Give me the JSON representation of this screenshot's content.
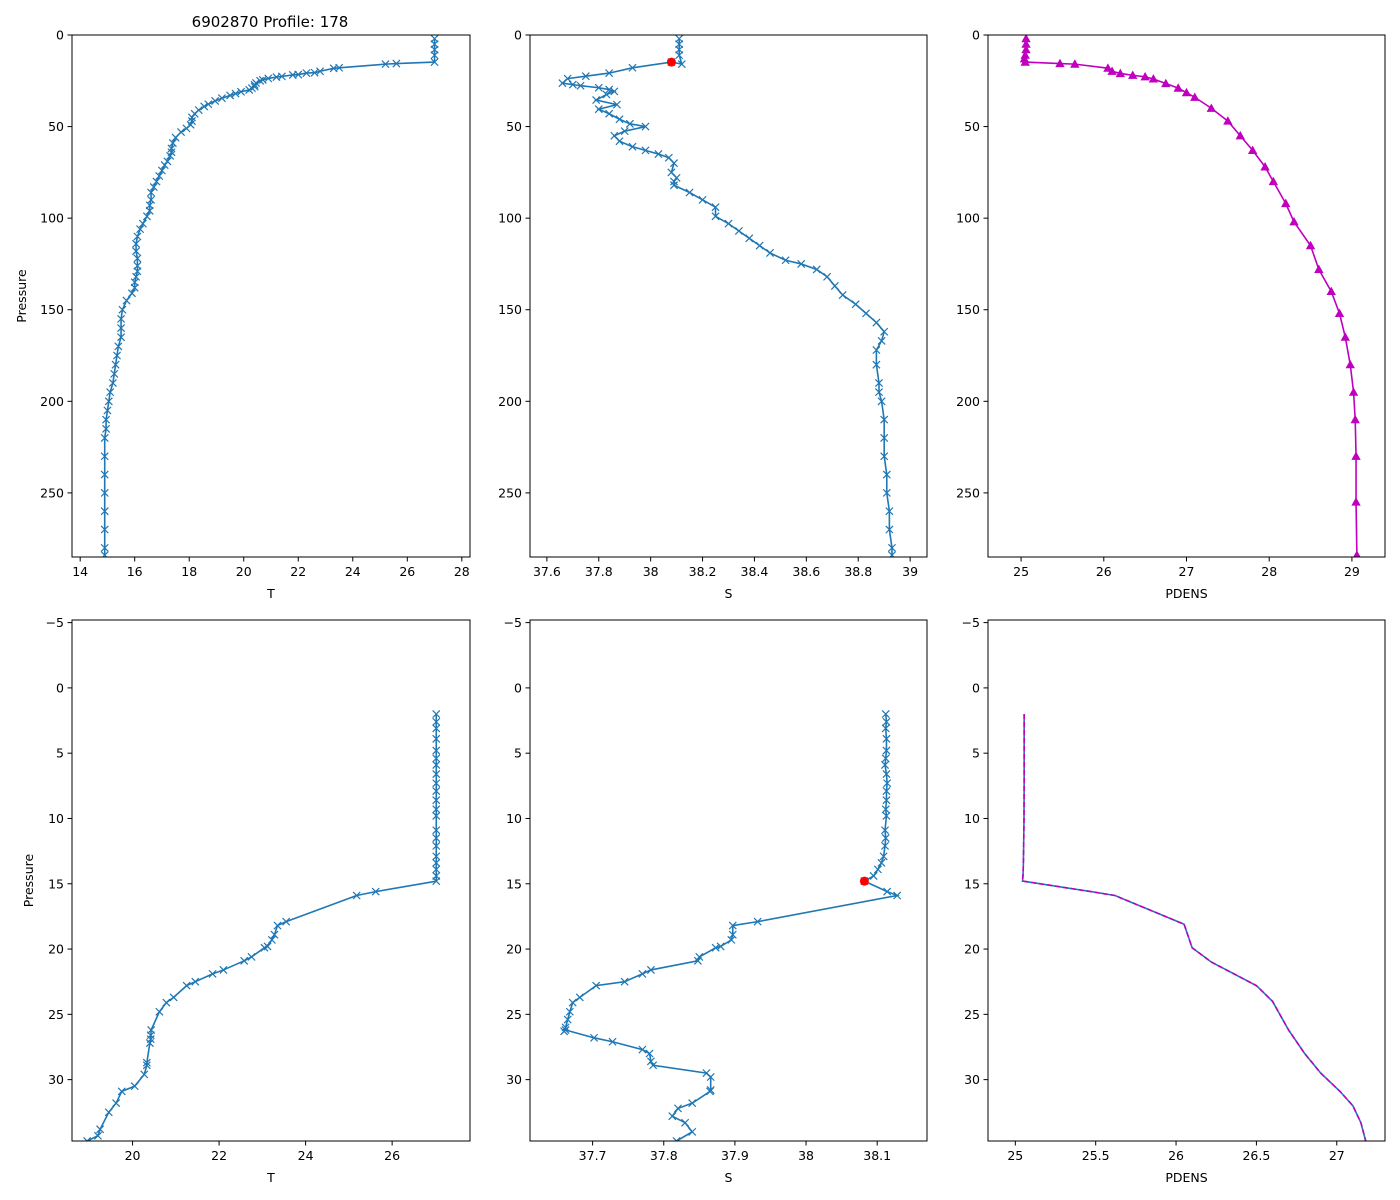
{
  "figure_title": "6902870 Profile: 178",
  "colors": {
    "line": "#1f77b4",
    "density": "#bf00bf",
    "flag": "#ff0000",
    "axis": "#000000"
  },
  "chart_data": [
    {
      "id": "T-full",
      "type": "line",
      "xlabel": "T",
      "ylabel": "Pressure",
      "xlim": [
        13.7,
        28.3
      ],
      "ylim": [
        285,
        0
      ],
      "invert_y": true,
      "xticks": [
        14,
        16,
        18,
        20,
        22,
        24,
        26,
        28
      ],
      "yticks": [
        0,
        50,
        100,
        150,
        200,
        250
      ],
      "series": [
        {
          "name": "T",
          "marker": "x",
          "color": "line",
          "x": [
            27.0,
            27.0,
            27.0,
            27.0,
            27.0,
            25.6,
            25.2,
            23.5,
            23.3,
            22.8,
            22.6,
            22.3,
            22.0,
            21.8,
            21.4,
            21.2,
            20.9,
            20.7,
            20.6,
            20.45,
            20.4,
            20.4,
            20.3,
            20.2,
            19.9,
            19.7,
            19.5,
            19.2,
            18.95,
            18.7,
            18.55,
            18.35,
            18.2,
            18.1,
            18.1,
            18.05,
            17.9,
            17.7,
            17.5,
            17.4,
            17.35,
            17.35,
            17.3,
            17.2,
            17.1,
            17.0,
            16.9,
            16.8,
            16.7,
            16.6,
            16.6,
            16.55,
            16.55,
            16.45,
            16.3,
            16.2,
            16.1,
            16.05,
            16.05,
            16.1,
            16.1,
            16.1,
            16.05,
            16.0,
            16.0,
            15.9,
            15.7,
            15.55,
            15.5,
            15.5,
            15.5,
            15.4,
            15.35,
            15.3,
            15.25,
            15.2,
            15.1,
            15.05,
            15.0,
            14.95,
            14.95,
            14.9,
            14.9,
            14.9,
            14.9,
            14.9,
            14.9,
            14.9,
            14.9
          ],
          "y": [
            2,
            5,
            8,
            11,
            14.8,
            15.6,
            15.9,
            17.9,
            18.2,
            19.8,
            20.6,
            20.8,
            21.6,
            21.8,
            22.6,
            23.0,
            23.7,
            24.5,
            25.0,
            26.2,
            27.2,
            28.2,
            29.0,
            30.0,
            31.0,
            32.0,
            33.0,
            34.5,
            36.0,
            37.8,
            39.0,
            41.0,
            43.0,
            45.0,
            47.0,
            49.0,
            51.0,
            53.0,
            56.0,
            59.0,
            62.0,
            64.0,
            66.0,
            69.0,
            71.0,
            74.0,
            77.0,
            80.0,
            83.0,
            86.0,
            90.0,
            93.0,
            96.0,
            99.0,
            103.0,
            106.0,
            110.0,
            114.0,
            118.0,
            122.0,
            126.0,
            129.0,
            132.0,
            135.0,
            138.0,
            141.0,
            145.0,
            150.0,
            155.0,
            160.0,
            165.0,
            170.0,
            175.0,
            180.0,
            185.0,
            190.0,
            195.0,
            200.0,
            205.0,
            210.0,
            215.0,
            220.0,
            230.0,
            240.0,
            250.0,
            260.0,
            270.0,
            280.0,
            284.0
          ]
        }
      ]
    },
    {
      "id": "S-full",
      "type": "line",
      "xlabel": "S",
      "ylabel": "",
      "xlim": [
        37.535,
        39.065
      ],
      "ylim": [
        285,
        0
      ],
      "invert_y": true,
      "xticks": [
        37.6,
        37.8,
        38.0,
        38.2,
        38.4,
        38.6,
        38.8,
        39.0
      ],
      "yticks": [
        0,
        50,
        100,
        150,
        200,
        250
      ],
      "series": [
        {
          "name": "S",
          "marker": "x",
          "color": "line",
          "x": [
            38.11,
            38.11,
            38.11,
            38.11,
            38.12,
            38.08,
            37.93,
            37.84,
            37.75,
            37.68,
            37.66,
            37.7,
            37.73,
            37.8,
            37.84,
            37.86,
            37.83,
            37.79,
            37.87,
            37.8,
            37.84,
            37.88,
            37.92,
            37.98,
            37.9,
            37.86,
            37.88,
            37.93,
            37.98,
            38.03,
            38.07,
            38.09,
            38.08,
            38.1,
            38.09,
            38.09,
            38.15,
            38.2,
            38.25,
            38.25,
            38.3,
            38.34,
            38.38,
            38.42,
            38.46,
            38.52,
            38.58,
            38.64,
            38.68,
            38.71,
            38.74,
            38.79,
            38.83,
            38.87,
            38.9,
            38.89,
            38.87,
            38.87,
            38.88,
            38.88,
            38.89,
            38.9,
            38.9,
            38.9,
            38.91,
            38.91,
            38.92,
            38.92,
            38.93,
            38.93
          ],
          "y": [
            2,
            5,
            8,
            11,
            15.9,
            14.8,
            17.9,
            20.8,
            22.5,
            23.8,
            26.3,
            27.1,
            27.7,
            28.8,
            29.8,
            30.8,
            32.5,
            35.5,
            38.0,
            40.5,
            43.0,
            46.0,
            48.5,
            50.0,
            52.5,
            55.0,
            58.0,
            61.0,
            63.0,
            65.0,
            67.0,
            70.0,
            75.0,
            78.0,
            80.0,
            82.0,
            86.0,
            90.0,
            94.0,
            99.0,
            103.0,
            107.0,
            111.0,
            115.0,
            119.0,
            123.0,
            125.0,
            128.0,
            132.0,
            137.0,
            142.0,
            147.0,
            152.0,
            157.0,
            162.0,
            167.0,
            172.0,
            180.0,
            190.0,
            195.0,
            200.0,
            210.0,
            220.0,
            230.0,
            240.0,
            250.0,
            260.0,
            270.0,
            280.0,
            284.0
          ]
        }
      ],
      "highlight": {
        "x": 38.08,
        "y": 14.8,
        "color": "flag"
      }
    },
    {
      "id": "PDENS-full",
      "type": "line",
      "xlabel": "PDENS",
      "ylabel": "",
      "xlim": [
        24.6,
        29.4
      ],
      "ylim": [
        285,
        0
      ],
      "invert_y": true,
      "xticks": [
        25,
        26,
        27,
        28,
        29
      ],
      "yticks": [
        0,
        50,
        100,
        150,
        200,
        250
      ],
      "series": [
        {
          "name": "PDENS",
          "marker": "^",
          "color": "density",
          "x": [
            25.06,
            25.06,
            25.06,
            25.05,
            25.04,
            25.05,
            25.47,
            25.65,
            26.05,
            26.1,
            26.2,
            26.35,
            26.5,
            26.6,
            26.75,
            26.9,
            27.0,
            27.1,
            27.3,
            27.5,
            27.65,
            27.8,
            27.95,
            28.05,
            28.2,
            28.3,
            28.5,
            28.6,
            28.75,
            28.85,
            28.92,
            28.98,
            29.02,
            29.04,
            29.05,
            29.05,
            29.06
          ],
          "y": [
            2,
            5,
            8,
            11,
            13,
            14.8,
            15.6,
            15.9,
            18.1,
            19.8,
            21.0,
            22.0,
            22.8,
            24.0,
            26.5,
            29.0,
            31.5,
            34.0,
            40.0,
            47.0,
            55.0,
            63.0,
            72.0,
            80.0,
            92.0,
            102.0,
            115.0,
            128.0,
            140.0,
            152.0,
            165.0,
            180.0,
            195.0,
            210.0,
            230.0,
            255.0,
            284.0
          ]
        }
      ]
    },
    {
      "id": "T-zoom",
      "type": "line",
      "xlabel": "T",
      "ylabel": "Pressure",
      "xlim": [
        18.6,
        27.8
      ],
      "ylim": [
        34.7,
        -5.2
      ],
      "invert_y": true,
      "xticks": [
        20,
        22,
        24,
        26
      ],
      "yticks": [
        -5,
        0,
        5,
        10,
        15,
        20,
        25,
        30
      ],
      "series": [
        {
          "name": "T",
          "marker": "x",
          "color": "line",
          "x": [
            27.02,
            27.02,
            27.02,
            27.02,
            27.02,
            27.02,
            27.02,
            27.02,
            27.02,
            27.02,
            27.02,
            27.02,
            27.02,
            27.02,
            27.02,
            27.02,
            27.02,
            27.02,
            27.02,
            27.02,
            27.02,
            25.62,
            25.18,
            23.55,
            23.35,
            23.28,
            23.22,
            23.12,
            23.05,
            22.75,
            22.58,
            22.1,
            21.85,
            21.45,
            21.25,
            20.95,
            20.78,
            20.62,
            20.43,
            20.42,
            20.42,
            20.4,
            20.33,
            20.33,
            20.27,
            20.05,
            19.75,
            19.62,
            19.45,
            19.25,
            19.2,
            18.95
          ],
          "y": [
            2.0,
            2.6,
            3.1,
            3.9,
            4.8,
            5.4,
            5.9,
            6.6,
            7.3,
            7.9,
            8.6,
            9.3,
            9.8,
            10.9,
            11.5,
            12.1,
            12.9,
            13.4,
            13.9,
            14.4,
            14.8,
            15.6,
            15.9,
            17.9,
            18.2,
            18.9,
            19.3,
            19.8,
            19.9,
            20.6,
            20.9,
            21.6,
            21.9,
            22.5,
            22.8,
            23.7,
            24.1,
            24.8,
            26.2,
            26.6,
            26.9,
            27.2,
            28.7,
            28.9,
            29.6,
            30.5,
            30.9,
            31.8,
            32.5,
            33.8,
            34.3,
            34.7
          ]
        }
      ]
    },
    {
      "id": "S-zoom",
      "type": "line",
      "xlabel": "S",
      "ylabel": "",
      "xlim": [
        37.612,
        38.17
      ],
      "ylim": [
        34.7,
        -5.2
      ],
      "invert_y": true,
      "xticks": [
        37.7,
        37.8,
        37.9,
        38.0,
        38.1
      ],
      "yticks": [
        -5,
        0,
        5,
        10,
        15,
        20,
        25,
        30
      ],
      "series": [
        {
          "name": "S",
          "marker": "x",
          "color": "line",
          "x": [
            38.112,
            38.113,
            38.112,
            38.113,
            38.113,
            38.112,
            38.111,
            38.113,
            38.114,
            38.113,
            38.113,
            38.112,
            38.113,
            38.111,
            38.112,
            38.111,
            38.109,
            38.106,
            38.101,
            38.095,
            38.082,
            38.114,
            38.128,
            37.932,
            37.897,
            37.897,
            37.895,
            37.88,
            37.873,
            37.85,
            37.848,
            37.782,
            37.77,
            37.745,
            37.705,
            37.682,
            37.672,
            37.668,
            37.665,
            37.662,
            37.66,
            37.662,
            37.702,
            37.728,
            37.77,
            37.78,
            37.782,
            37.785,
            37.86,
            37.866,
            37.866,
            37.865,
            37.84,
            37.82,
            37.812,
            37.83,
            37.84,
            37.818
          ],
          "y": [
            2.0,
            2.6,
            3.1,
            3.9,
            4.8,
            5.4,
            5.9,
            6.6,
            7.3,
            7.9,
            8.6,
            9.3,
            9.8,
            10.9,
            11.5,
            12.1,
            12.9,
            13.4,
            13.9,
            14.4,
            14.8,
            15.6,
            15.9,
            17.9,
            18.2,
            18.9,
            19.3,
            19.8,
            19.9,
            20.6,
            20.9,
            21.6,
            21.9,
            22.5,
            22.8,
            23.7,
            24.1,
            24.8,
            25.4,
            26.0,
            26.3,
            26.2,
            26.8,
            27.1,
            27.7,
            28.0,
            28.6,
            28.9,
            29.5,
            29.8,
            30.8,
            30.9,
            31.8,
            32.2,
            32.8,
            33.3,
            34.0,
            34.7
          ]
        }
      ],
      "highlight": {
        "x": 38.082,
        "y": 14.8,
        "color": "flag"
      }
    },
    {
      "id": "PDENS-zoom",
      "type": "line",
      "xlabel": "PDENS",
      "ylabel": "",
      "xlim": [
        24.83,
        27.3
      ],
      "ylim": [
        34.7,
        -5.2
      ],
      "invert_y": true,
      "xticks": [
        25.0,
        25.5,
        26.0,
        26.5,
        27.0
      ],
      "yticks": [
        -5,
        0,
        5,
        10,
        15,
        20,
        25,
        30
      ],
      "series": [
        {
          "name": "PDENS",
          "marker": "",
          "color": "line",
          "x": [
            25.055,
            25.055,
            25.055,
            25.054,
            25.052,
            25.05,
            25.048,
            25.045,
            25.05,
            25.47,
            25.62,
            26.05,
            26.1,
            26.22,
            26.5,
            26.6,
            26.7,
            26.8,
            26.9,
            27.02,
            27.1,
            27.15,
            27.18
          ],
          "y": [
            2.0,
            4.0,
            7.0,
            10.0,
            12.0,
            13.5,
            14.3,
            14.8,
            14.8,
            15.6,
            15.9,
            18.1,
            19.9,
            21.0,
            22.8,
            24.0,
            26.2,
            28.0,
            29.5,
            30.9,
            32.0,
            33.3,
            34.7
          ]
        },
        {
          "name": "PDENS-dashed",
          "marker": "",
          "color": "density",
          "dashed": true,
          "x": [
            25.055,
            25.055,
            25.055,
            25.054,
            25.052,
            25.05,
            25.048,
            25.045,
            25.05,
            25.47,
            25.62,
            26.05,
            26.1,
            26.22,
            26.5,
            26.6,
            26.7,
            26.8,
            26.9,
            27.02,
            27.1,
            27.15,
            27.18
          ],
          "y": [
            2.0,
            4.0,
            7.0,
            10.0,
            12.0,
            13.5,
            14.3,
            14.8,
            14.8,
            15.6,
            15.9,
            18.1,
            19.9,
            21.0,
            22.8,
            24.0,
            26.2,
            28.0,
            29.5,
            30.9,
            32.0,
            33.3,
            34.7
          ]
        }
      ]
    }
  ]
}
